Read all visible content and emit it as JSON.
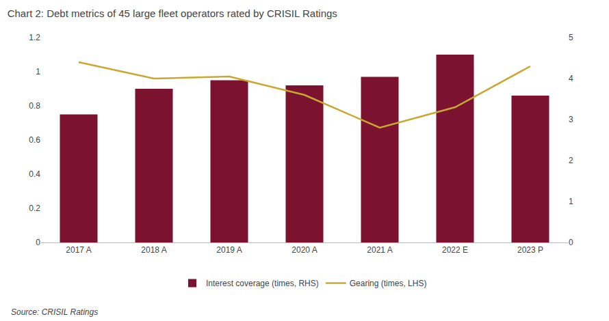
{
  "chart_data": {
    "type": "bar",
    "title": "Chart 2: Debt metrics of 45 large fleet operators rated by CRISIL Ratings",
    "categories": [
      "2017 A",
      "2018 A",
      "2019 A",
      "2020 A",
      "2021 A",
      "2022 E",
      "2023 P"
    ],
    "series": [
      {
        "name": "Interest coverage (times, RHS)",
        "type": "bar",
        "color": "#7B1230",
        "values": [
          0.75,
          0.9,
          0.95,
          0.92,
          0.97,
          1.1,
          0.86
        ]
      },
      {
        "name": "Gearing (times, LHS)",
        "type": "line",
        "axis": "y2",
        "color": "#C8A830",
        "values": [
          4.4,
          4.0,
          4.05,
          3.6,
          2.8,
          3.3,
          4.3
        ]
      }
    ],
    "ylim": [
      0,
      1.2
    ],
    "yticks": [
      0,
      0.2,
      0.4,
      0.6,
      0.8,
      1,
      1.2
    ],
    "y2lim": [
      0,
      5
    ],
    "y2ticks": [
      0,
      1,
      2,
      3,
      4,
      5
    ],
    "annotations": [
      "Source: CRISIL Ratings"
    ],
    "grid": false,
    "legend": "bottom"
  }
}
